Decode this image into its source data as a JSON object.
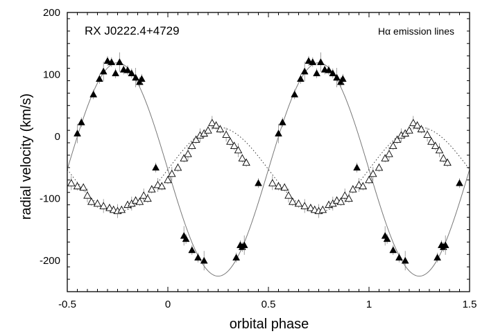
{
  "chart_data": {
    "type": "scatter",
    "title": "",
    "xlabel": "orbital phase",
    "ylabel": "radial velocity (km/s)",
    "xlim": [
      -0.5,
      1.5
    ],
    "ylim": [
      -250,
      200
    ],
    "x_ticks": [
      -0.5,
      0,
      0.5,
      1,
      1.5
    ],
    "x_tick_labels": [
      "-0.5",
      "0",
      "0.5",
      "1",
      "1.5"
    ],
    "y_ticks": [
      200,
      100,
      0,
      -100,
      -200
    ],
    "y_tick_labels": [
      "200",
      "100",
      "0",
      "-100",
      "-200"
    ],
    "grid": false,
    "annotations": {
      "object": "RX J0222.4+4729",
      "line_prefix": "H",
      "line_greek": "α",
      "line_suffix": " emission lines"
    },
    "series": [
      {
        "marker": "filled-triangle",
        "color": "#000000",
        "fit": {
          "gamma": -53,
          "K": 172,
          "phase_of_max": 0.75,
          "style": "solid"
        },
        "x": [
          -0.45,
          -0.43,
          -0.37,
          -0.34,
          -0.32,
          -0.3,
          -0.28,
          -0.26,
          -0.24,
          -0.22,
          -0.2,
          -0.18,
          -0.16,
          -0.14,
          -0.13,
          -0.06,
          0.08,
          0.09,
          0.12,
          0.15,
          0.18,
          0.34,
          0.36,
          0.37,
          0.38,
          0.45
        ],
        "y": [
          5,
          23,
          68,
          93,
          105,
          122,
          120,
          102,
          120,
          108,
          107,
          102,
          95,
          88,
          93,
          -50,
          -160,
          -165,
          -183,
          -195,
          -200,
          -195,
          -175,
          -178,
          -175,
          -75
        ]
      },
      {
        "marker": "open-triangle",
        "color": "#000000",
        "fit": {
          "gamma": -53,
          "K": 68,
          "phase_of_max": 0.25,
          "style": "dotted"
        },
        "x": [
          -0.48,
          -0.45,
          -0.42,
          -0.4,
          -0.38,
          -0.35,
          -0.32,
          -0.29,
          -0.27,
          -0.25,
          -0.23,
          -0.2,
          -0.18,
          -0.16,
          -0.14,
          -0.12,
          -0.1,
          -0.08,
          -0.05,
          -0.03,
          0.0,
          0.02,
          0.05,
          0.08,
          0.1,
          0.12,
          0.14,
          0.16,
          0.18,
          0.2,
          0.22,
          0.24,
          0.26,
          0.29,
          0.31,
          0.33,
          0.35,
          0.37,
          0.39
        ],
        "y": [
          -75,
          -80,
          -82,
          -95,
          -105,
          -108,
          -112,
          -115,
          -118,
          -120,
          -118,
          -110,
          -108,
          -103,
          -105,
          -95,
          -100,
          -85,
          -78,
          -80,
          -70,
          -60,
          -50,
          -35,
          -28,
          -15,
          -5,
          2,
          5,
          10,
          22,
          18,
          12,
          3,
          -8,
          -15,
          -22,
          -35,
          -42
        ]
      }
    ]
  }
}
